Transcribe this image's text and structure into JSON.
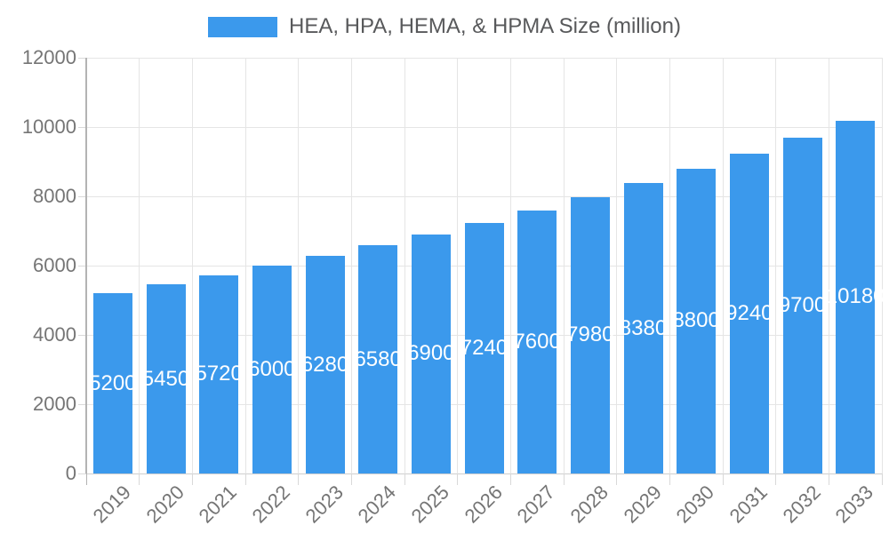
{
  "chart_data": {
    "type": "bar",
    "title": "HEA, HPA, HEMA, & HPMA Size (million)",
    "xlabel": "",
    "ylabel": "",
    "categories": [
      "2019",
      "2020",
      "2021",
      "2022",
      "2023",
      "2024",
      "2025",
      "2026",
      "2027",
      "2028",
      "2029",
      "2030",
      "2031",
      "2032",
      "2033"
    ],
    "values": [
      5200,
      5450,
      5720,
      6000,
      6280,
      6580,
      6900,
      7240,
      7600,
      7980,
      8380,
      8800,
      9240,
      9700,
      10180
    ],
    "series_name": "HEA, HPA, HEMA, & HPMA Size (million)",
    "ylim": [
      0,
      12000
    ],
    "yticks": [
      0,
      2000,
      4000,
      6000,
      8000,
      10000,
      12000
    ],
    "grid": true,
    "legend_position": "top",
    "bar_labels_shown": true
  },
  "colors": {
    "bar": "#3B99EC",
    "bar_label": "#FFFFFF",
    "gridline": "#E5E5E5",
    "axis_y_line": "#B3B3B3",
    "axis_bottom_line": "#CFCFCF",
    "tick_mark": "#D9D9D9",
    "tick_text": "#757575",
    "legend_text": "#58595B",
    "background": "#FFFFFF"
  }
}
